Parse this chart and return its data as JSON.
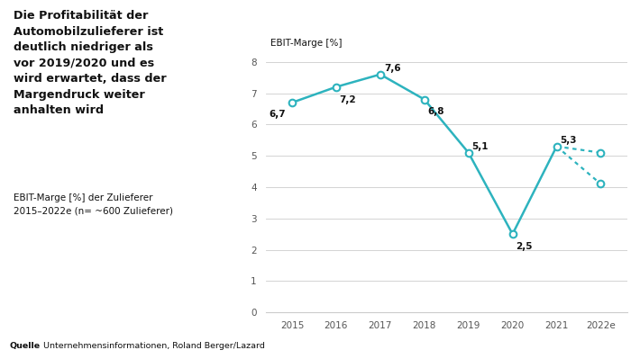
{
  "years_solid": [
    "2015",
    "2016",
    "2017",
    "2018",
    "2019",
    "2020",
    "2021"
  ],
  "values_solid": [
    6.7,
    7.2,
    7.6,
    6.8,
    5.1,
    2.5,
    5.3
  ],
  "years_dotted": [
    "2021",
    "2022e"
  ],
  "values_dotted_high": [
    5.3,
    5.1
  ],
  "values_dotted_low": [
    5.3,
    4.1
  ],
  "x_labels": [
    "2015",
    "2016",
    "2017",
    "2018",
    "2019",
    "2020",
    "2021",
    "2022e"
  ],
  "ylim": [
    0,
    8.6
  ],
  "yticks": [
    0,
    1,
    2,
    3,
    4,
    5,
    6,
    7,
    8
  ],
  "line_color": "#2db3be",
  "marker_facecolor": "#ffffff",
  "marker_edgecolor": "#2db3be",
  "title_left": "Die Profitabilität der\nAutomobilzulieferer ist\ndeutlich niedriger als\nvor 2019/2020 und es\nwird erwartet, dass der\nMargendruck weiter\nanhalten wird",
  "subtitle_left": "EBIT-Marge [%] der Zulieferer\n2015–2022e (n= ~600 Zulieferer)",
  "ylabel": "EBIT-Marge [%]",
  "source_bold": "Quelle",
  "source_text": " Unternehmensinformationen, Roland Berger/Lazard",
  "bg_color": "#ffffff",
  "grid_color": "#cccccc"
}
